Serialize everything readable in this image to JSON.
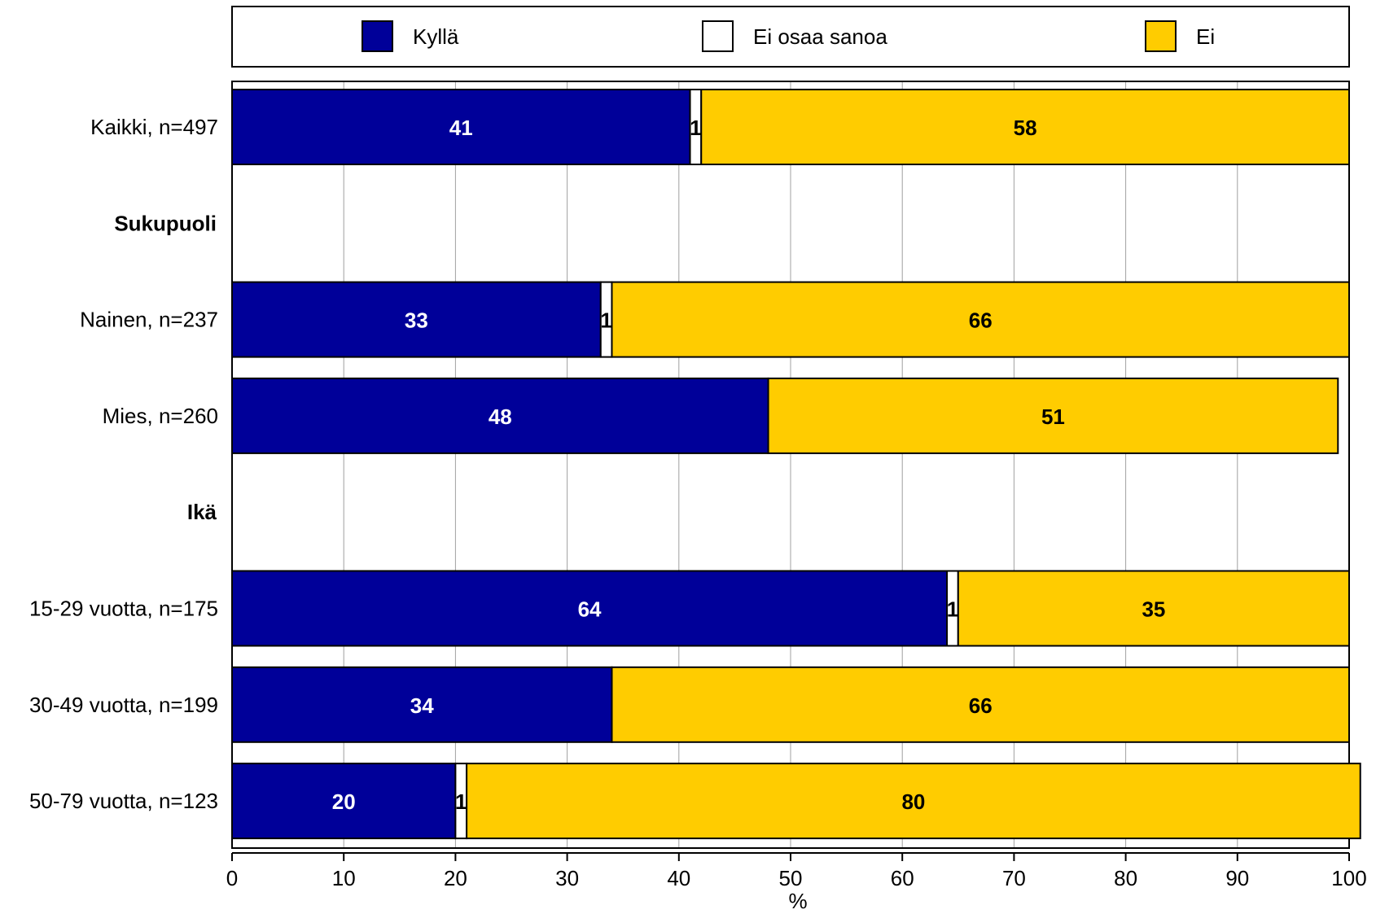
{
  "chart_data": {
    "type": "bar",
    "orientation": "horizontal",
    "stacked": true,
    "xlabel": "%",
    "xlim": [
      0,
      100
    ],
    "xticks": [
      0,
      10,
      20,
      30,
      40,
      50,
      60,
      70,
      80,
      90,
      100
    ],
    "grid": true,
    "legend_position": "top",
    "series": [
      {
        "name": "Kyllä",
        "color": "#000099",
        "label_color": "#ffffff"
      },
      {
        "name": "Ei osaa sanoa",
        "color": "#ffffff",
        "label_color": "#000000"
      },
      {
        "name": "Ei",
        "color": "#ffcc00",
        "label_color": "#000000"
      }
    ],
    "rows": [
      {
        "label": "Kaikki, n=497",
        "values": [
          41,
          1,
          58
        ]
      },
      {
        "label": "Sukupuoli",
        "heading": true
      },
      {
        "label": "Nainen, n=237",
        "values": [
          33,
          1,
          66
        ]
      },
      {
        "label": "Mies, n=260",
        "values": [
          48,
          0,
          51
        ]
      },
      {
        "label": "Ikä",
        "heading": true
      },
      {
        "label": "15-29 vuotta, n=175",
        "values": [
          64,
          1,
          35
        ]
      },
      {
        "label": "30-49 vuotta, n=199",
        "values": [
          34,
          0,
          66
        ]
      },
      {
        "label": "50-79 vuotta, n=123",
        "values": [
          20,
          1,
          80
        ]
      }
    ]
  }
}
